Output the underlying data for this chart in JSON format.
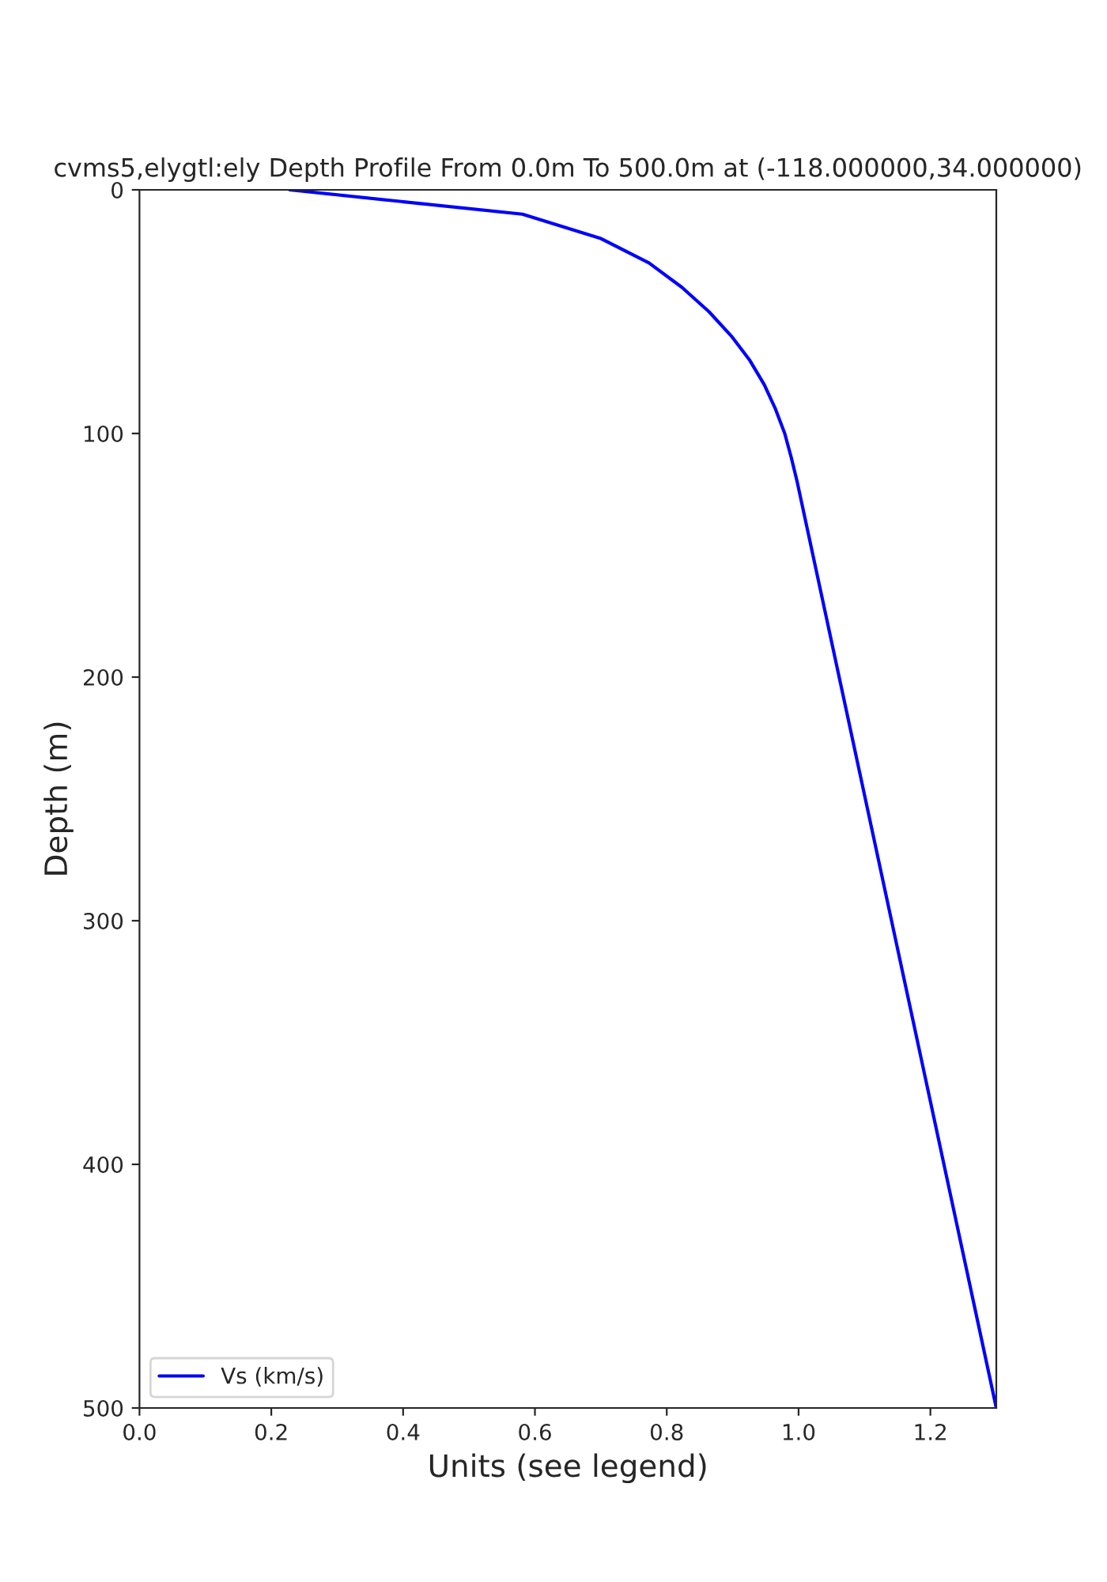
{
  "chart_data": {
    "type": "line",
    "title": "cvms5,elygtl:ely Depth Profile From 0.0m To 500.0m at (-118.000000,34.000000)",
    "xlabel": "Units (see legend)",
    "ylabel": "Depth (m)",
    "series": [
      {
        "name": "Vs (km/s)",
        "color": "#0000ff",
        "x": [
          0.228,
          0.581,
          0.7,
          0.773,
          0.823,
          0.864,
          0.898,
          0.926,
          0.948,
          0.965,
          0.979,
          0.989,
          0.998,
          1.3
        ],
        "values": [
          0,
          10,
          20,
          30,
          40,
          50,
          60,
          70,
          80,
          90,
          100,
          110,
          120,
          500
        ]
      }
    ],
    "xlim": [
      0,
      1.3
    ],
    "xticks": [
      {
        "value": 0,
        "label": "0.0"
      },
      0.2,
      0.4,
      0.6,
      0.8,
      {
        "value": 1,
        "label": "1.0"
      },
      1.2
    ],
    "ylim": [
      500,
      0
    ],
    "yticks": [
      0,
      100,
      200,
      300,
      400,
      500
    ],
    "legend": "lower left",
    "grid": false,
    "line_style": "solid",
    "marker": "none"
  }
}
